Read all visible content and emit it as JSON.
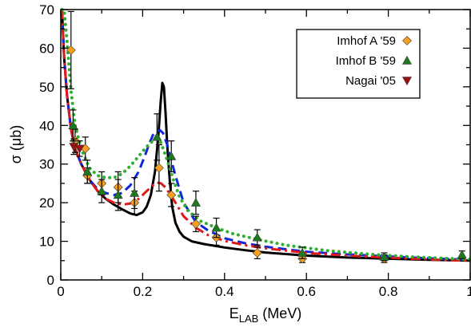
{
  "chart_data": {
    "type": "scatter",
    "xlabel": "E",
    "xlabel_sub": "LAB",
    "xlabel_unit": "(MeV)",
    "ylabel": "σ (μb)",
    "xlim": [
      0,
      1.0
    ],
    "ylim": [
      0,
      70
    ],
    "xticks": [
      0,
      0.2,
      0.4,
      0.6,
      0.8,
      1.0
    ],
    "xtick_labels": [
      "0",
      "0.2",
      "0.4",
      "0.6",
      "0.8",
      "1"
    ],
    "yticks": [
      0,
      10,
      20,
      30,
      40,
      50,
      60,
      70
    ],
    "ytick_labels": [
      "0",
      "10",
      "20",
      "30",
      "40",
      "50",
      "60",
      "70"
    ],
    "grid": false,
    "legend_position": "top-right",
    "series": [
      {
        "name": "Imhof A '59",
        "kind": "points",
        "marker": "diamond",
        "color": "#f5a020",
        "points": [
          {
            "x": 0.025,
            "y": 59.5,
            "err": 10
          },
          {
            "x": 0.035,
            "y": 36,
            "err": 3
          },
          {
            "x": 0.06,
            "y": 34,
            "err": 3
          },
          {
            "x": 0.065,
            "y": 27,
            "err": 2
          },
          {
            "x": 0.1,
            "y": 25,
            "err": 3
          },
          {
            "x": 0.14,
            "y": 24,
            "err": 4
          },
          {
            "x": 0.18,
            "y": 20,
            "err": 3
          },
          {
            "x": 0.24,
            "y": 29,
            "err": 6
          },
          {
            "x": 0.27,
            "y": 22,
            "err": 3
          },
          {
            "x": 0.33,
            "y": 14.5,
            "err": 2
          },
          {
            "x": 0.38,
            "y": 11,
            "err": 2
          },
          {
            "x": 0.48,
            "y": 7,
            "err": 1.5
          },
          {
            "x": 0.59,
            "y": 5.5,
            "err": 1
          },
          {
            "x": 0.79,
            "y": 5.5,
            "err": 1
          }
        ]
      },
      {
        "name": "Imhof B '59",
        "kind": "points",
        "marker": "triangle-up",
        "color": "#1e7a1e",
        "points": [
          {
            "x": 0.03,
            "y": 40,
            "err": 4
          },
          {
            "x": 0.065,
            "y": 28,
            "err": 3
          },
          {
            "x": 0.1,
            "y": 23,
            "err": 3
          },
          {
            "x": 0.14,
            "y": 22,
            "err": 4
          },
          {
            "x": 0.18,
            "y": 22.5,
            "err": 4
          },
          {
            "x": 0.235,
            "y": 37,
            "err": 6
          },
          {
            "x": 0.27,
            "y": 32,
            "err": 4
          },
          {
            "x": 0.33,
            "y": 20,
            "err": 3
          },
          {
            "x": 0.38,
            "y": 13.5,
            "err": 2.5
          },
          {
            "x": 0.48,
            "y": 11,
            "err": 2
          },
          {
            "x": 0.59,
            "y": 7,
            "err": 1.5
          },
          {
            "x": 0.79,
            "y": 6,
            "err": 1
          },
          {
            "x": 0.98,
            "y": 6.5,
            "err": 1
          }
        ]
      },
      {
        "name": "Nagai '05",
        "kind": "points",
        "marker": "triangle-down",
        "color": "#a01010",
        "points": [
          {
            "x": 0.032,
            "y": 34.5,
            "err": 2
          },
          {
            "x": 0.046,
            "y": 34,
            "err": 2
          }
        ]
      },
      {
        "kind": "curve",
        "style": "solid",
        "color": "#000000",
        "x": [
          0.003,
          0.008,
          0.015,
          0.025,
          0.035,
          0.05,
          0.07,
          0.09,
          0.11,
          0.13,
          0.15,
          0.17,
          0.185,
          0.2,
          0.21,
          0.22,
          0.23,
          0.238,
          0.244,
          0.248,
          0.252,
          0.256,
          0.26,
          0.266,
          0.272,
          0.28,
          0.29,
          0.3,
          0.32,
          0.35,
          0.4,
          0.45,
          0.5,
          0.6,
          0.7,
          0.8,
          0.9,
          1.0
        ],
        "y": [
          70,
          58,
          48,
          39,
          34,
          30,
          26,
          23,
          21,
          19.5,
          18.3,
          17.2,
          16.8,
          17.5,
          19,
          22,
          28,
          37,
          46,
          51,
          50,
          43,
          35,
          26,
          19,
          14.8,
          12.5,
          11.2,
          10,
          9.3,
          8.4,
          7.7,
          7.1,
          6.3,
          5.8,
          5.5,
          5.2,
          5.0
        ]
      },
      {
        "kind": "curve",
        "style": "dashed",
        "color": "#1028d8",
        "x": [
          0.003,
          0.008,
          0.015,
          0.025,
          0.035,
          0.05,
          0.07,
          0.09,
          0.11,
          0.13,
          0.15,
          0.17,
          0.19,
          0.205,
          0.215,
          0.225,
          0.235,
          0.242,
          0.25,
          0.26,
          0.27,
          0.28,
          0.3,
          0.33,
          0.36,
          0.4,
          0.45,
          0.5,
          0.6,
          0.7,
          0.8,
          0.9,
          1.0
        ],
        "y": [
          70,
          58,
          48,
          39,
          34,
          30,
          26,
          23.5,
          22.5,
          22,
          22.5,
          24.5,
          28,
          32,
          35,
          37.5,
          38.5,
          38.8,
          38,
          35,
          31,
          27,
          20,
          15,
          12.8,
          10.8,
          9.5,
          8.6,
          7.3,
          6.6,
          6.1,
          5.6,
          5.2
        ]
      },
      {
        "kind": "curve",
        "style": "dash-dot",
        "color": "#e01818",
        "x": [
          0.003,
          0.008,
          0.015,
          0.025,
          0.035,
          0.05,
          0.07,
          0.09,
          0.11,
          0.13,
          0.15,
          0.17,
          0.19,
          0.21,
          0.225,
          0.235,
          0.245,
          0.255,
          0.265,
          0.28,
          0.3,
          0.33,
          0.36,
          0.4,
          0.45,
          0.5,
          0.6,
          0.7,
          0.8,
          0.9,
          1.0
        ],
        "y": [
          70,
          58,
          48,
          39,
          34,
          30,
          26,
          23,
          21,
          20,
          19.5,
          19.8,
          21,
          23,
          24.5,
          25.2,
          25,
          24,
          22.5,
          20,
          16.5,
          13.5,
          11.6,
          10.1,
          9,
          8.2,
          7,
          6.3,
          5.8,
          5.3,
          5.0
        ]
      },
      {
        "kind": "curve",
        "style": "dotted",
        "color": "#30b030",
        "x": [
          0.003,
          0.008,
          0.015,
          0.025,
          0.035,
          0.05,
          0.07,
          0.09,
          0.11,
          0.13,
          0.15,
          0.17,
          0.19,
          0.21,
          0.225,
          0.235,
          0.245,
          0.26,
          0.275,
          0.29,
          0.31,
          0.34,
          0.38,
          0.42,
          0.48,
          0.55,
          0.65,
          0.75,
          0.85,
          1.0
        ],
        "y": [
          70,
          70,
          62,
          49,
          40,
          34,
          29,
          27,
          26.5,
          26.5,
          27.5,
          29.5,
          32,
          34.5,
          36,
          36.5,
          35.5,
          31,
          26,
          21.5,
          18,
          15.3,
          13.5,
          12,
          10.5,
          9,
          7.6,
          6.7,
          6.0,
          5.3
        ]
      }
    ]
  }
}
